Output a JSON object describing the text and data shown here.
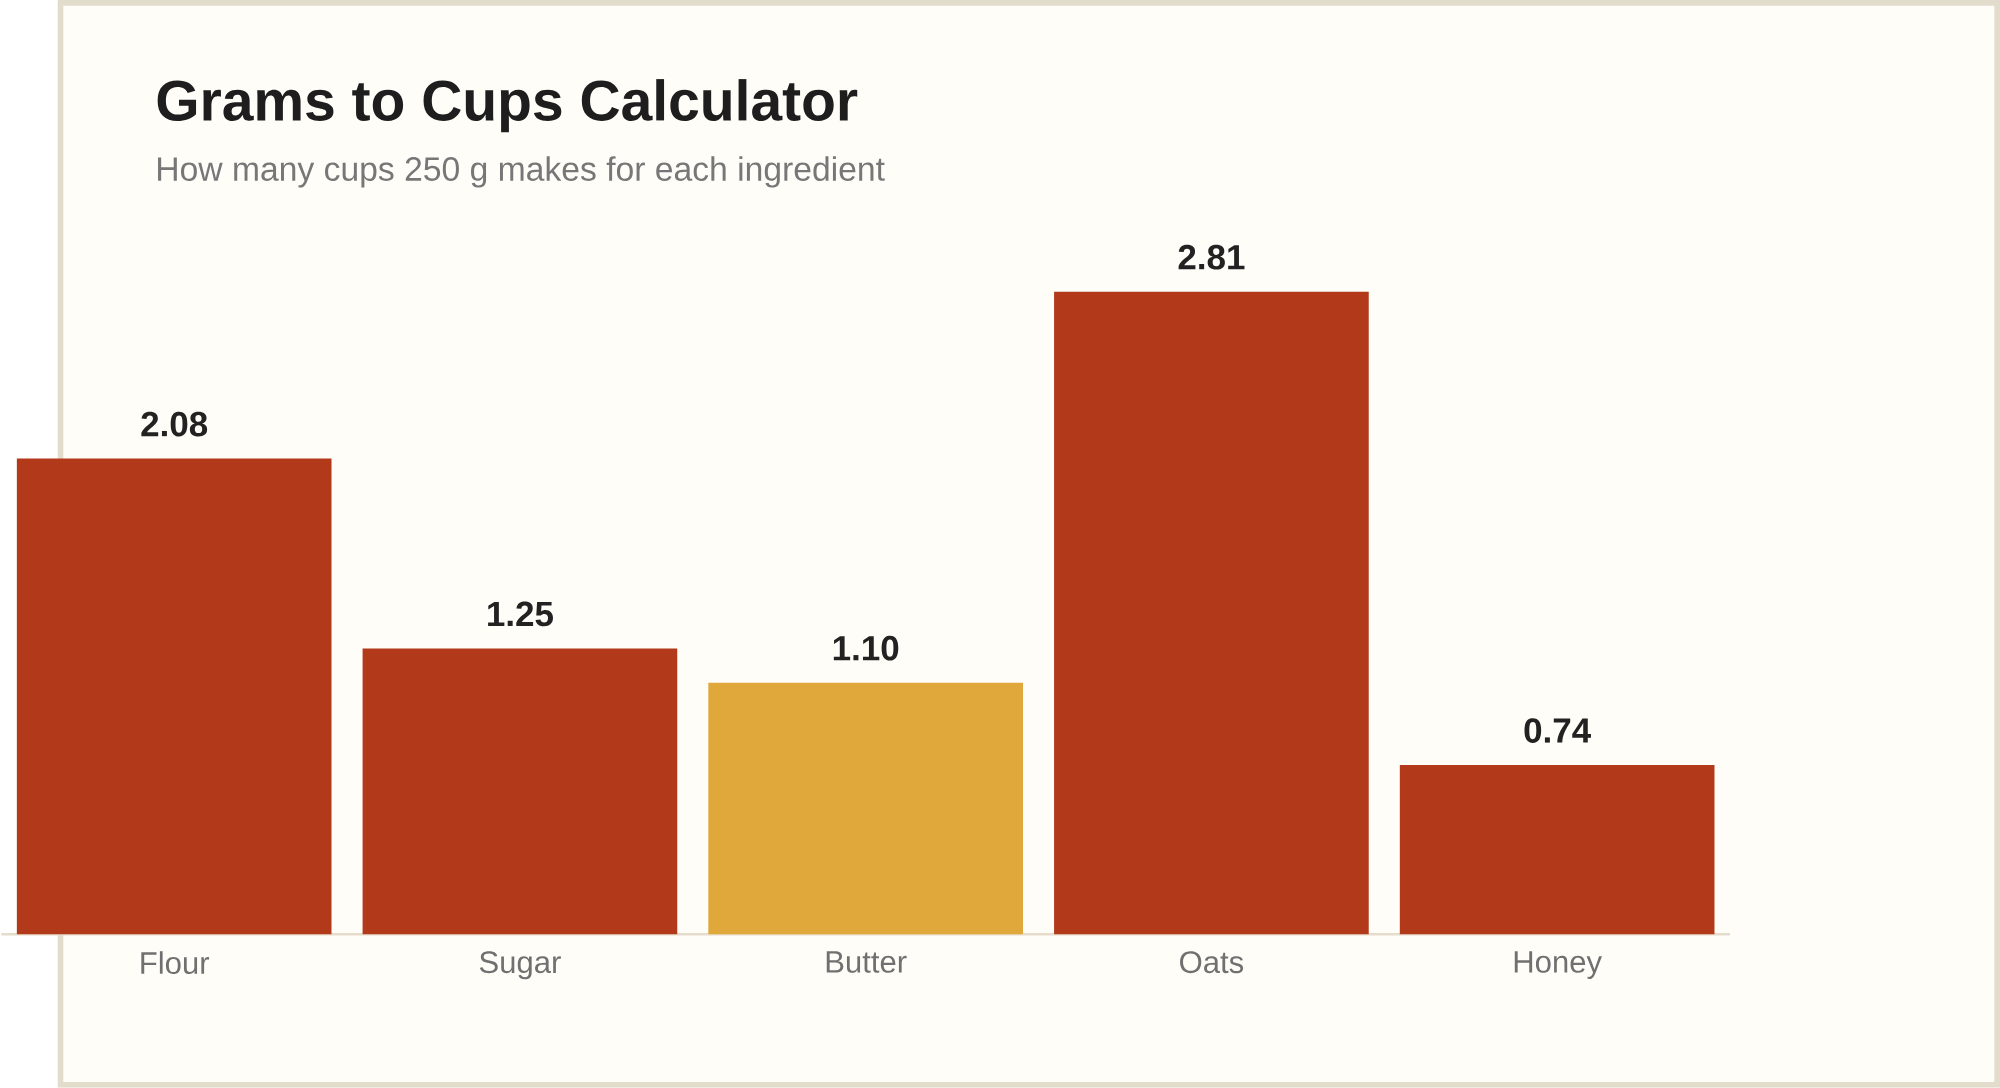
{
  "chart_data": {
    "type": "bar",
    "title": "Grams to Cups Calculator",
    "subtitle": "How many cups 250 g makes for each ingredient",
    "categories": [
      "Flour",
      "Sugar",
      "Butter",
      "Oats",
      "Honey"
    ],
    "values": [
      2.08,
      1.25,
      1.1,
      2.81,
      0.74
    ],
    "value_labels": [
      "2.08",
      "1.25",
      "1.10",
      "2.81",
      "0.74"
    ],
    "colors": [
      "#b23a1a",
      "#b23a1a",
      "#e0a73b",
      "#b23a1a",
      "#b23a1a"
    ]
  }
}
